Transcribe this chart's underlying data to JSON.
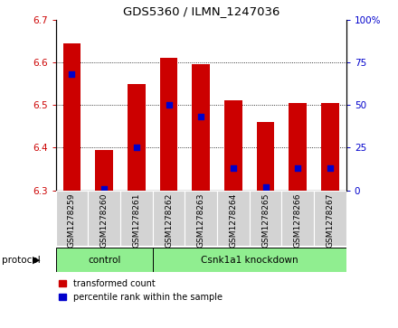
{
  "title": "GDS5360 / ILMN_1247036",
  "samples": [
    "GSM1278259",
    "GSM1278260",
    "GSM1278261",
    "GSM1278262",
    "GSM1278263",
    "GSM1278264",
    "GSM1278265",
    "GSM1278266",
    "GSM1278267"
  ],
  "transformed_counts": [
    6.645,
    6.395,
    6.55,
    6.61,
    6.595,
    6.51,
    6.46,
    6.505,
    6.505
  ],
  "percentile_ranks": [
    68,
    1,
    25,
    50,
    43,
    13,
    2,
    13,
    13
  ],
  "ylim_left": [
    6.3,
    6.7
  ],
  "ylim_right": [
    0,
    100
  ],
  "yticks_left": [
    6.3,
    6.4,
    6.5,
    6.6,
    6.7
  ],
  "yticks_right": [
    0,
    25,
    50,
    75,
    100
  ],
  "bar_color": "#cc0000",
  "dot_color": "#0000cc",
  "bar_bottom": 6.3,
  "ctrl_count": 3,
  "total_count": 9,
  "ctrl_label": "control",
  "kd_label": "Csnk1a1 knockdown",
  "group_color": "#90ee90",
  "protocol_label": "protocol",
  "legend_bar_label": "transformed count",
  "legend_dot_label": "percentile rank within the sample",
  "background_color": "#ffffff",
  "ticklabel_color_left": "#cc0000",
  "ticklabel_color_right": "#0000cc",
  "xtick_bg_color": "#d3d3d3",
  "plot_box_color": "#000000"
}
